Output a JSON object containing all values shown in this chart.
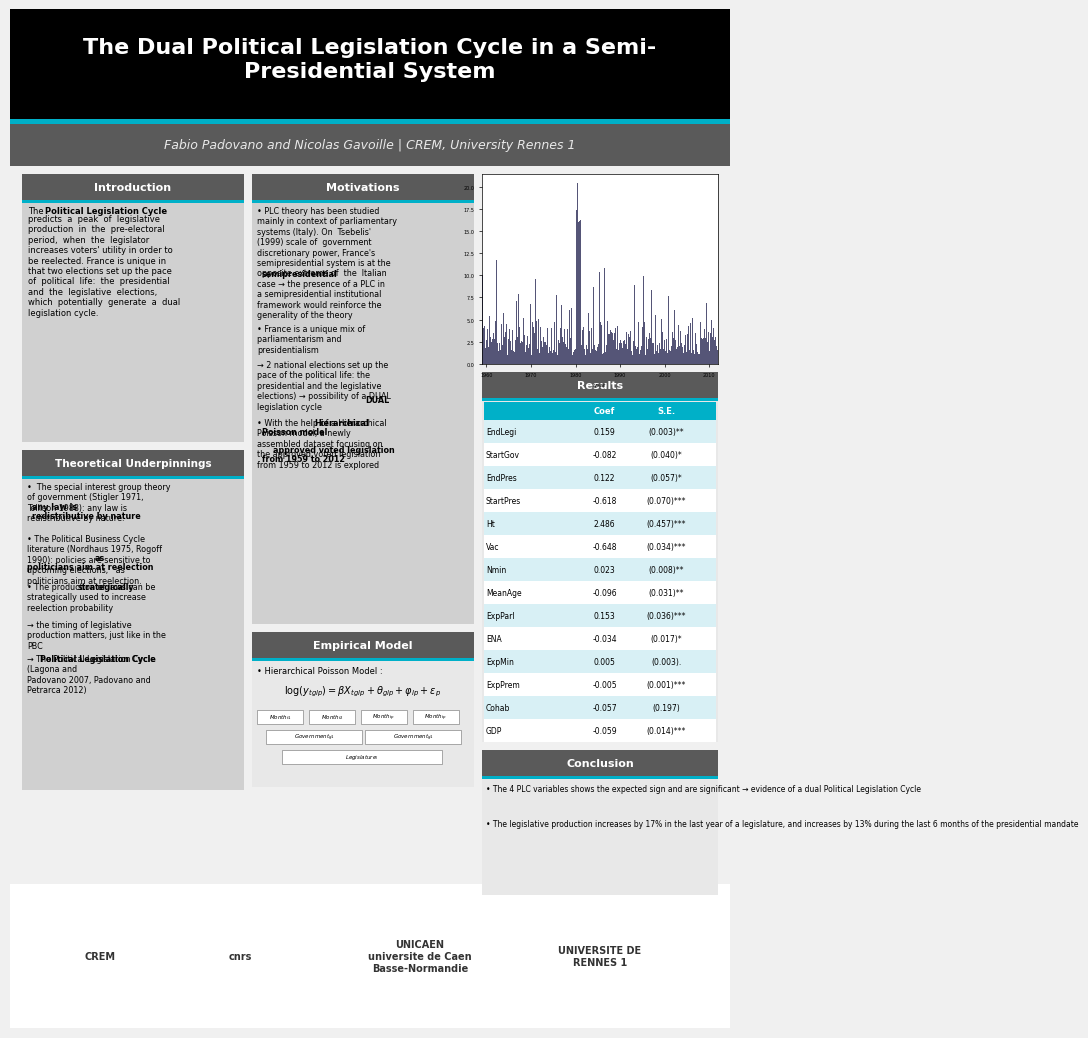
{
  "title": "The Dual Political Legislation Cycle in a Semi-\nPresidential System",
  "author_line": "Fabio Padovano and Nicolas Gavoille | CREM, University Rennes 1",
  "title_bg": "#000000",
  "title_color": "#ffffff",
  "author_bg": "#5a5a5a",
  "author_color": "#e8e8e8",
  "accent_color": "#00b0c8",
  "section_header_bg": "#5a5a5a",
  "section_header_color": "#ffffff",
  "content_bg": "#d0d0d0",
  "content_bg2": "#e8e8e8",
  "poster_bg": "#f0f0f0",
  "intro_title": "Introduction",
  "intro_text": "The Political Legislation Cycle predicts a peak of legislative production in the pre-electoral period, when the legislator increases voters' utility in order to be reelected. France is unique in that two elections set up the pace of political life: the presidential and the legislative elections, which potentially generate a dual legislation cycle.",
  "theory_title": "Theoretical Underpinnings",
  "theory_bullets": [
    " The special interest group theory of government (Stigler 1971, Tollison 1988): any law is redistributive by nature.",
    "The Political Business Cycle literature (Nordhaus 1975, Rogoff 1990): policies are sensitive to upcoming elections, as politicians aim at reelection.",
    "The production of laws can be strategically used to increase reelection probability",
    "→ the timing of legislative production matters, just like in the PBC",
    "→ The Political Legislation Cycle (Lagona and\nPadovano 2007, Padovano and Petrarca 2012)"
  ],
  "motiv_title": "Motivations",
  "motiv_bullets": [
    "PLC theory has been studied mainly in context of parliamentary systems (Italy). On Tsebelis' (1999) scale of government discretionary power, France's semipresidential system is at the opposite extreme of the  Italian case → the presence of a PLC in a semipresidential institutional framework would reinforce the generality of the theory",
    "France is a unique mix of parliamentarism and presidentialism",
    "→ 2 national elections set up the pace of the political life: the presidential and the legislative elections) → possibility of a DUAL legislation cycle",
    "With the help of a Hierarchical Poisson model, a newly assembled dataset focusing on the approved voted legislation from 1959 to 2012 is explored"
  ],
  "empirical_title": "Empirical Model",
  "results_title": "Results",
  "results_headers": [
    "",
    "Coef",
    "S.E."
  ],
  "results_rows": [
    [
      "EndLegi",
      "0.159",
      "(0.003)**"
    ],
    [
      "StartGov",
      "-0.082",
      "(0.040)*"
    ],
    [
      "EndPres",
      "0.122",
      "(0.057)*"
    ],
    [
      "StartPres",
      "-0.618",
      "(0.070)***"
    ],
    [
      "Ht",
      "2.486",
      "(0.457)***"
    ],
    [
      "Vac",
      "-0.648",
      "(0.034)***"
    ],
    [
      "Nmin",
      "0.023",
      "(0.008)**"
    ],
    [
      "MeanAge",
      "-0.096",
      "(0.031)**"
    ],
    [
      "ExpParl",
      "0.153",
      "(0.036)***"
    ],
    [
      "ENA",
      "-0.034",
      "(0.017)*"
    ],
    [
      "ExpMin",
      "0.005",
      "(0.003)."
    ],
    [
      "ExpPrem",
      "-0.005",
      "(0.001)***"
    ],
    [
      "Cohab",
      "-0.057",
      "(0.197)"
    ],
    [
      "GDP",
      "-0.059",
      "(0.014)***"
    ]
  ],
  "results_header_bg": "#00b0c8",
  "results_alt_bg": "#d8f0f5",
  "conclusion_title": "Conclusion",
  "conclusion_bullets": [
    "The 4 PLC variables shows the expected sign and are significant → evidence of a dual Political Legislation Cycle",
    "The legislative production increases by 17% in the last year of a legislature, and increases by 13% during the last 6 months of the presidential mandate"
  ]
}
